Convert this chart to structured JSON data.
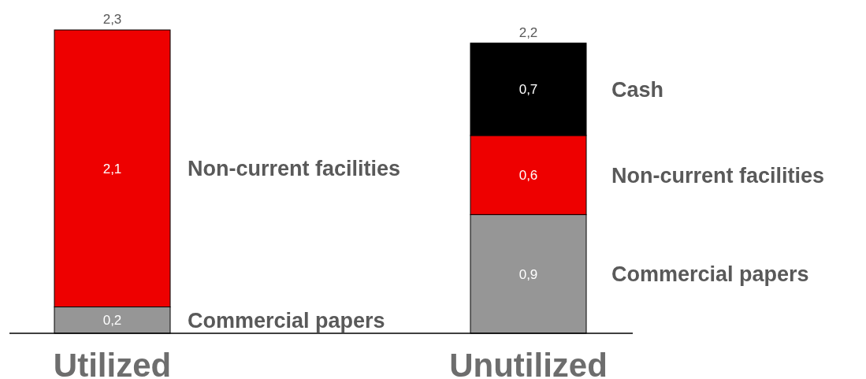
{
  "chart_data": {
    "type": "bar",
    "categories": [
      "Utilized",
      "Unutilized"
    ],
    "stacked": true,
    "series": [
      {
        "name": "Commercial papers",
        "color": "#969696",
        "values": [
          0.2,
          0.9
        ],
        "value_labels": [
          "0,2",
          "0,9"
        ]
      },
      {
        "name": "Non-current facilities",
        "color": "#ee0000",
        "values": [
          2.1,
          0.6
        ],
        "value_labels": [
          "2,1",
          "0,6"
        ]
      },
      {
        "name": "Cash",
        "color": "#000000",
        "values": [
          null,
          0.7
        ],
        "value_labels": [
          null,
          "0,7"
        ]
      }
    ],
    "totals": [
      "2,3",
      "2,2"
    ]
  }
}
